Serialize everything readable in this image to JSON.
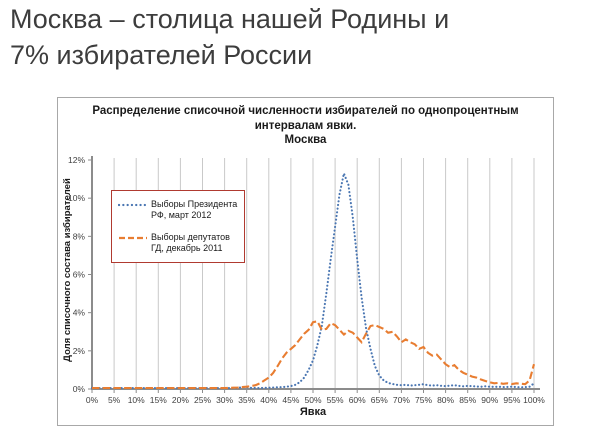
{
  "slide": {
    "title": "Москва – столица нашей Родины и 7% избирателей России",
    "title_color": "#3d3d3d",
    "background": "#ffffff"
  },
  "chart_data": {
    "type": "line",
    "title": "Распределение списочной численности избирателей по однопроцентным интервалам явки.",
    "subtitle": "Москва",
    "xlabel": "Явка",
    "ylabel": "Доля списочного состава избирателей",
    "xlim": [
      0,
      100
    ],
    "ylim": [
      0,
      12
    ],
    "grid": true,
    "grid_color": "#c9c9c9",
    "axis_color": "#8c8c8c",
    "x_tick_step": 5,
    "x_tick_labels": [
      "0%",
      "5%",
      "10%",
      "15%",
      "20%",
      "25%",
      "30%",
      "35%",
      "40%",
      "45%",
      "50%",
      "55%",
      "60%",
      "65%",
      "70%",
      "75%",
      "80%",
      "85%",
      "90%",
      "95%",
      "100%"
    ],
    "y_tick_step": 2,
    "y_tick_labels": [
      "0%",
      "2%",
      "4%",
      "6%",
      "8%",
      "10%",
      "12%"
    ],
    "legend": {
      "position": "upper-left",
      "border_color": "#b03a30"
    },
    "x": [
      0,
      1,
      2,
      3,
      4,
      5,
      6,
      7,
      8,
      9,
      10,
      11,
      12,
      13,
      14,
      15,
      16,
      17,
      18,
      19,
      20,
      21,
      22,
      23,
      24,
      25,
      26,
      27,
      28,
      29,
      30,
      31,
      32,
      33,
      34,
      35,
      36,
      37,
      38,
      39,
      40,
      41,
      42,
      43,
      44,
      45,
      46,
      47,
      48,
      49,
      50,
      51,
      52,
      53,
      54,
      55,
      56,
      57,
      58,
      59,
      60,
      61,
      62,
      63,
      64,
      65,
      66,
      67,
      68,
      69,
      70,
      71,
      72,
      73,
      74,
      75,
      76,
      77,
      78,
      79,
      80,
      81,
      82,
      83,
      84,
      85,
      86,
      87,
      88,
      89,
      90,
      91,
      92,
      93,
      94,
      95,
      96,
      97,
      98,
      99,
      100
    ],
    "series": [
      {
        "name": "Выборы Президента РФ, март 2012",
        "color": "#4a76b2",
        "style": "dotted",
        "values": [
          0.05,
          0.05,
          0.05,
          0.05,
          0.05,
          0.05,
          0.05,
          0.05,
          0.05,
          0.05,
          0.05,
          0.05,
          0.05,
          0.05,
          0.05,
          0.05,
          0.05,
          0.05,
          0.05,
          0.05,
          0.05,
          0.05,
          0.05,
          0.05,
          0.05,
          0.05,
          0.05,
          0.05,
          0.05,
          0.05,
          0.05,
          0.05,
          0.05,
          0.05,
          0.1,
          0.1,
          0.06,
          0.05,
          0.05,
          0.06,
          0.07,
          0.08,
          0.09,
          0.1,
          0.12,
          0.15,
          0.22,
          0.35,
          0.6,
          1.0,
          1.5,
          2.3,
          3.3,
          5.0,
          6.8,
          8.5,
          10.2,
          11.3,
          10.7,
          9.0,
          6.8,
          4.8,
          3.2,
          2.1,
          1.2,
          0.7,
          0.45,
          0.32,
          0.26,
          0.22,
          0.2,
          0.22,
          0.18,
          0.2,
          0.22,
          0.25,
          0.2,
          0.18,
          0.2,
          0.17,
          0.15,
          0.18,
          0.2,
          0.16,
          0.14,
          0.16,
          0.15,
          0.13,
          0.12,
          0.14,
          0.12,
          0.11,
          0.12,
          0.1,
          0.11,
          0.12,
          0.1,
          0.09,
          0.1,
          0.12,
          0.3
        ]
      },
      {
        "name": "Выборы депутатов ГД, декабрь 2011",
        "color": "#e87d31",
        "style": "dashed",
        "values": [
          0.05,
          0.05,
          0.05,
          0.05,
          0.05,
          0.05,
          0.05,
          0.05,
          0.05,
          0.05,
          0.05,
          0.05,
          0.05,
          0.05,
          0.05,
          0.05,
          0.05,
          0.05,
          0.05,
          0.05,
          0.05,
          0.05,
          0.05,
          0.05,
          0.05,
          0.05,
          0.05,
          0.05,
          0.05,
          0.05,
          0.05,
          0.06,
          0.07,
          0.08,
          0.1,
          0.12,
          0.15,
          0.2,
          0.3,
          0.45,
          0.6,
          0.85,
          1.2,
          1.6,
          1.9,
          2.1,
          2.3,
          2.6,
          2.9,
          3.1,
          3.5,
          3.55,
          3.1,
          3.15,
          3.45,
          3.35,
          3.1,
          2.85,
          3.05,
          2.95,
          2.7,
          2.45,
          2.9,
          3.3,
          3.35,
          3.25,
          3.15,
          2.95,
          3.0,
          2.75,
          2.45,
          2.6,
          2.45,
          2.35,
          2.1,
          2.2,
          1.9,
          1.75,
          1.8,
          1.55,
          1.3,
          1.15,
          1.25,
          1.0,
          0.85,
          0.75,
          0.65,
          0.6,
          0.5,
          0.42,
          0.35,
          0.3,
          0.32,
          0.27,
          0.3,
          0.26,
          0.3,
          0.28,
          0.25,
          0.45,
          1.3
        ]
      }
    ]
  }
}
